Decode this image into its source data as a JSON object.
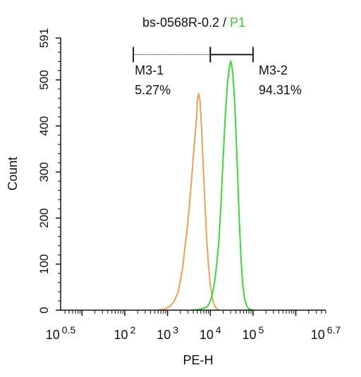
{
  "chart_data": {
    "type": "area",
    "title": "bs-0568R-0.2",
    "title_separator": " / ",
    "title_gate": "P1",
    "title_gate_color": "#33cc33",
    "xlabel": "PE-H",
    "ylabel": "Count",
    "x_scale": "log",
    "xlim_exponent": [
      0.5,
      6.7
    ],
    "ylim": [
      0,
      591
    ],
    "y_ticks": [
      0,
      100,
      200,
      300,
      400,
      500,
      591
    ],
    "x_tick_labels": [
      {
        "base": "10",
        "exp": "0.5",
        "value": 0.5
      },
      {
        "base": "10",
        "exp": "2",
        "value": 2
      },
      {
        "base": "10",
        "exp": "3",
        "value": 3
      },
      {
        "base": "10",
        "exp": "4",
        "value": 4
      },
      {
        "base": "10",
        "exp": "5",
        "value": 5
      },
      {
        "base": "10",
        "exp": "6.7",
        "value": 6.7
      }
    ],
    "series": [
      {
        "color": "#f0a050",
        "points": [
          [
            2.75,
            0
          ],
          [
            2.85,
            1
          ],
          [
            2.95,
            3
          ],
          [
            3.05,
            8
          ],
          [
            3.15,
            18
          ],
          [
            3.25,
            40
          ],
          [
            3.35,
            90
          ],
          [
            3.45,
            170
          ],
          [
            3.5,
            215
          ],
          [
            3.55,
            270
          ],
          [
            3.6,
            330
          ],
          [
            3.65,
            385
          ],
          [
            3.68,
            420
          ],
          [
            3.7,
            460
          ],
          [
            3.73,
            470
          ],
          [
            3.76,
            455
          ],
          [
            3.8,
            390
          ],
          [
            3.84,
            300
          ],
          [
            3.88,
            220
          ],
          [
            3.92,
            150
          ],
          [
            3.96,
            95
          ],
          [
            4.0,
            55
          ],
          [
            4.05,
            25
          ],
          [
            4.1,
            9
          ],
          [
            4.15,
            3
          ],
          [
            4.2,
            0
          ]
        ]
      },
      {
        "color": "#33dd33",
        "points": [
          [
            3.55,
            0
          ],
          [
            3.7,
            1
          ],
          [
            3.8,
            3
          ],
          [
            3.9,
            6
          ],
          [
            3.95,
            10
          ],
          [
            4.0,
            20
          ],
          [
            4.05,
            35
          ],
          [
            4.1,
            60
          ],
          [
            4.15,
            100
          ],
          [
            4.2,
            150
          ],
          [
            4.25,
            230
          ],
          [
            4.3,
            330
          ],
          [
            4.35,
            420
          ],
          [
            4.4,
            490
          ],
          [
            4.45,
            530
          ],
          [
            4.48,
            541
          ],
          [
            4.52,
            520
          ],
          [
            4.56,
            470
          ],
          [
            4.6,
            390
          ],
          [
            4.64,
            290
          ],
          [
            4.68,
            190
          ],
          [
            4.72,
            110
          ],
          [
            4.76,
            55
          ],
          [
            4.8,
            25
          ],
          [
            4.85,
            10
          ],
          [
            4.9,
            3
          ],
          [
            5.0,
            0
          ]
        ]
      }
    ],
    "gates": [
      {
        "name": "M3-1",
        "percent": "5.27%",
        "range_exponent": [
          2.2,
          4.0
        ],
        "y": 555,
        "dotted": true
      },
      {
        "name": "M3-2",
        "percent": "94.31%",
        "range_exponent": [
          4.0,
          5.0
        ],
        "y": 555,
        "dotted": false
      }
    ]
  }
}
